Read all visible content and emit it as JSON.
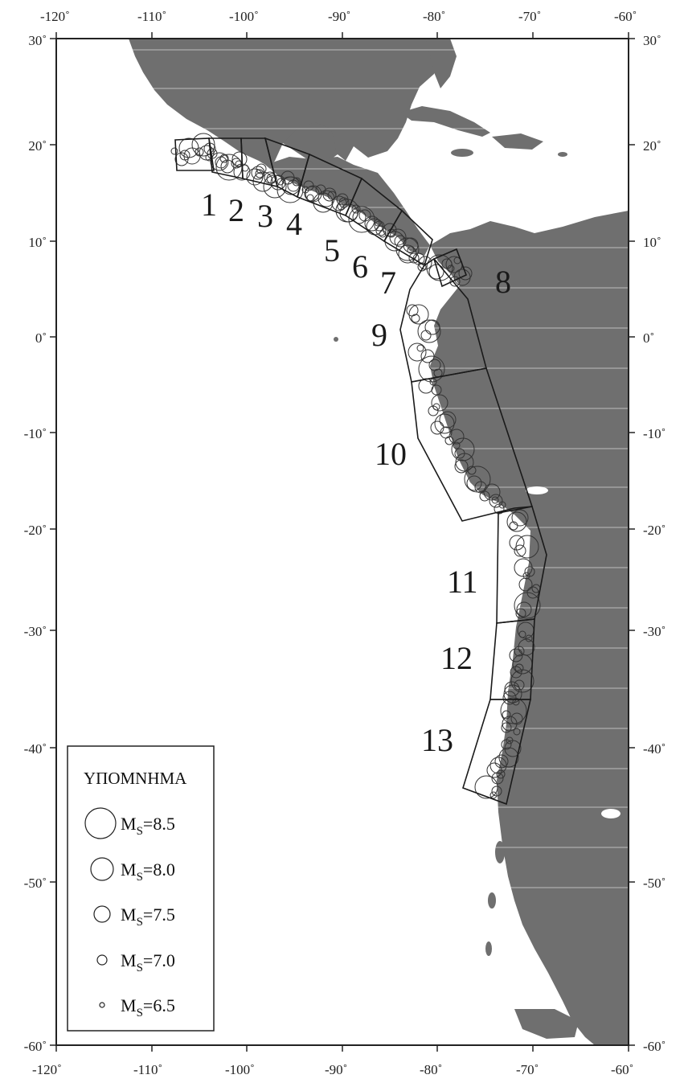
{
  "map": {
    "lon_range": [
      -120,
      -60
    ],
    "lat_range": [
      -60,
      30
    ],
    "colors": {
      "land": "#6f6f6f",
      "ocean": "#ffffff",
      "frame": "#222222",
      "zone_outline": "#1a1a1a",
      "event": "#333333"
    },
    "top_ticks": [
      "-120˚",
      "-110˚",
      "-100˚",
      "-90˚",
      "-80˚",
      "-70˚",
      "-60˚"
    ],
    "bottom_ticks": [
      "-120˚",
      "-110˚",
      "-100˚",
      "-90˚",
      "-80˚",
      "-70˚",
      "-60˚"
    ],
    "left_ticks": [
      "30˚",
      "20˚",
      "10˚",
      "0˚",
      "-10˚",
      "-20˚",
      "-30˚",
      "-40˚",
      "-50˚",
      "-60˚"
    ],
    "right_ticks": [
      "30˚",
      "20˚",
      "10˚",
      "0˚",
      "-10˚",
      "-20˚",
      "-30˚",
      "-40˚",
      "-50˚",
      "-60˚"
    ],
    "zone_labels": [
      "1",
      "2",
      "3",
      "4",
      "5",
      "6",
      "7",
      "8",
      "9",
      "10",
      "11",
      "12",
      "13"
    ]
  },
  "legend": {
    "title": "ΥΠΟΜΝΗΜΑ",
    "items": [
      {
        "prefix": "M",
        "sub": "S",
        "value": "=8.5"
      },
      {
        "prefix": "M",
        "sub": "S",
        "value": "=8.0"
      },
      {
        "prefix": "M",
        "sub": "S",
        "value": "=7.5"
      },
      {
        "prefix": "M",
        "sub": "S",
        "value": "=7.0"
      },
      {
        "prefix": "M",
        "sub": "S",
        "value": "=6.5"
      }
    ]
  }
}
